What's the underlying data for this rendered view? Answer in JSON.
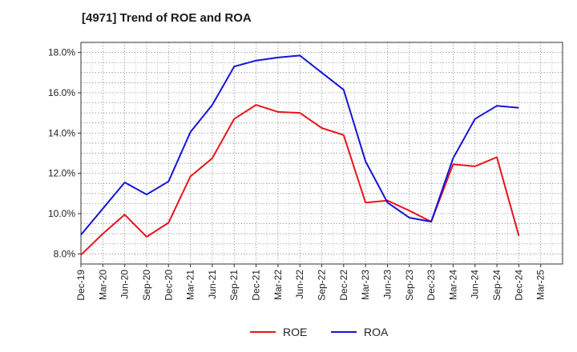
{
  "chart_data": {
    "type": "line",
    "title": "[4971]  Trend of ROE and ROA",
    "xlabel": "",
    "ylabel": "",
    "x": [
      "Dec-19",
      "Mar-20",
      "Jun-20",
      "Sep-20",
      "Dec-20",
      "Mar-21",
      "Jun-21",
      "Sep-21",
      "Dec-21",
      "Mar-22",
      "Jun-22",
      "Sep-22",
      "Dec-22",
      "Mar-23",
      "Jun-23",
      "Sep-23",
      "Dec-23",
      "Mar-24",
      "Jun-24",
      "Sep-24",
      "Dec-24",
      "Mar-25"
    ],
    "ylim": [
      7.5,
      18.5
    ],
    "yticks": [
      8.0,
      10.0,
      12.0,
      14.0,
      16.0,
      18.0
    ],
    "ytick_labels": [
      "8.0%",
      "10.0%",
      "12.0%",
      "14.0%",
      "16.0%",
      "18.0%"
    ],
    "grid": true,
    "legend_position": "bottom-center",
    "series": [
      {
        "name": "ROE",
        "color": "#e8141c",
        "values": [
          7.95,
          9.0,
          9.95,
          8.85,
          9.55,
          11.85,
          12.75,
          14.7,
          15.4,
          15.05,
          15.0,
          14.25,
          13.9,
          10.55,
          10.65,
          10.15,
          9.6,
          12.45,
          12.35,
          12.8,
          8.9,
          null
        ]
      },
      {
        "name": "ROA",
        "color": "#1414d8",
        "values": [
          8.95,
          10.25,
          11.55,
          10.95,
          11.6,
          14.05,
          15.4,
          17.3,
          17.6,
          17.75,
          17.85,
          17.0,
          16.15,
          12.6,
          10.55,
          9.8,
          9.6,
          12.75,
          14.7,
          15.35,
          15.25,
          null
        ]
      }
    ]
  }
}
